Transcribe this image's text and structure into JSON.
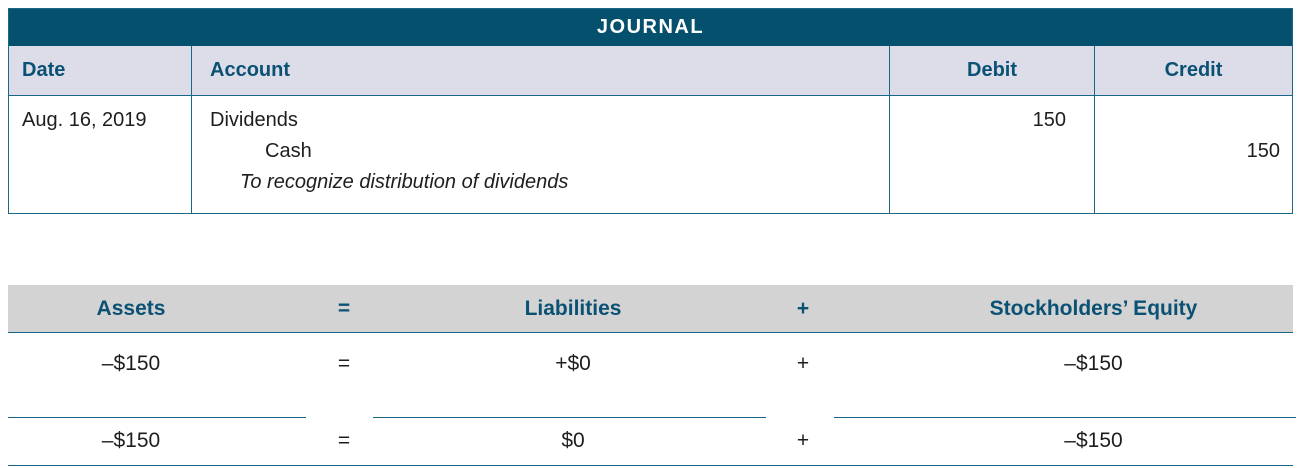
{
  "journal": {
    "title": "JOURNAL",
    "columns": {
      "date": "Date",
      "account": "Account",
      "debit": "Debit",
      "credit": "Credit"
    },
    "entry": {
      "date": "Aug. 16, 2019",
      "line1_account": "Dividends",
      "line1_debit": "150",
      "line2_account": "Cash",
      "line2_credit": "150",
      "memo": "To recognize distribution of dividends"
    }
  },
  "equation": {
    "header": {
      "assets": "Assets",
      "equals": "=",
      "liabilities": "Liabilities",
      "plus": "+",
      "equity": "Stockholders’ Equity"
    },
    "row1": {
      "assets": "–$150",
      "equals": "=",
      "liabilities": "+$0",
      "plus": "+",
      "equity": "–$150"
    },
    "totals": {
      "assets": "–$150",
      "equals": "=",
      "liabilities": "$0",
      "plus": "+",
      "equity": "–$150"
    }
  },
  "colors": {
    "title_bar_bg": "#05506C",
    "table_border": "#1B678A",
    "journal_header_bg": "#DCDDE8",
    "equation_header_bg": "#D3D3D3",
    "heading_text": "#0B5174"
  }
}
